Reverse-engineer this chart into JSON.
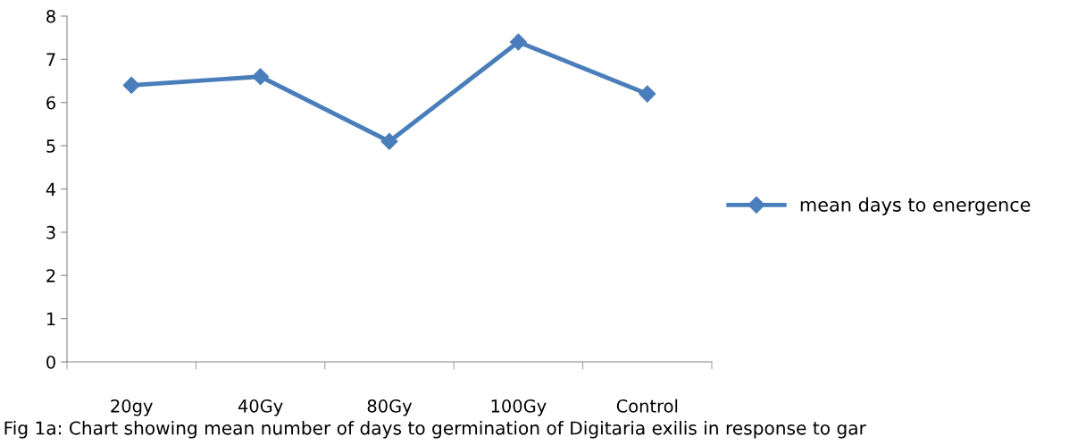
{
  "chart_data": {
    "type": "line",
    "categories": [
      "20gy",
      "40Gy",
      "80Gy",
      "100Gy",
      "Control"
    ],
    "series": [
      {
        "name": "mean days to energence",
        "color": "#4a7ebb",
        "values": [
          6.4,
          6.6,
          5.1,
          7.4,
          6.2
        ]
      }
    ],
    "ylim": [
      0,
      8
    ],
    "yticks": [
      0,
      1,
      2,
      3,
      4,
      5,
      6,
      7,
      8
    ],
    "grid": false,
    "legend": "right",
    "marker": "diamond",
    "line_style": "solid",
    "annotations": [
      "Fig 1a: Chart showing mean number of days to germination of Digitaria exilis in response to gar"
    ]
  }
}
